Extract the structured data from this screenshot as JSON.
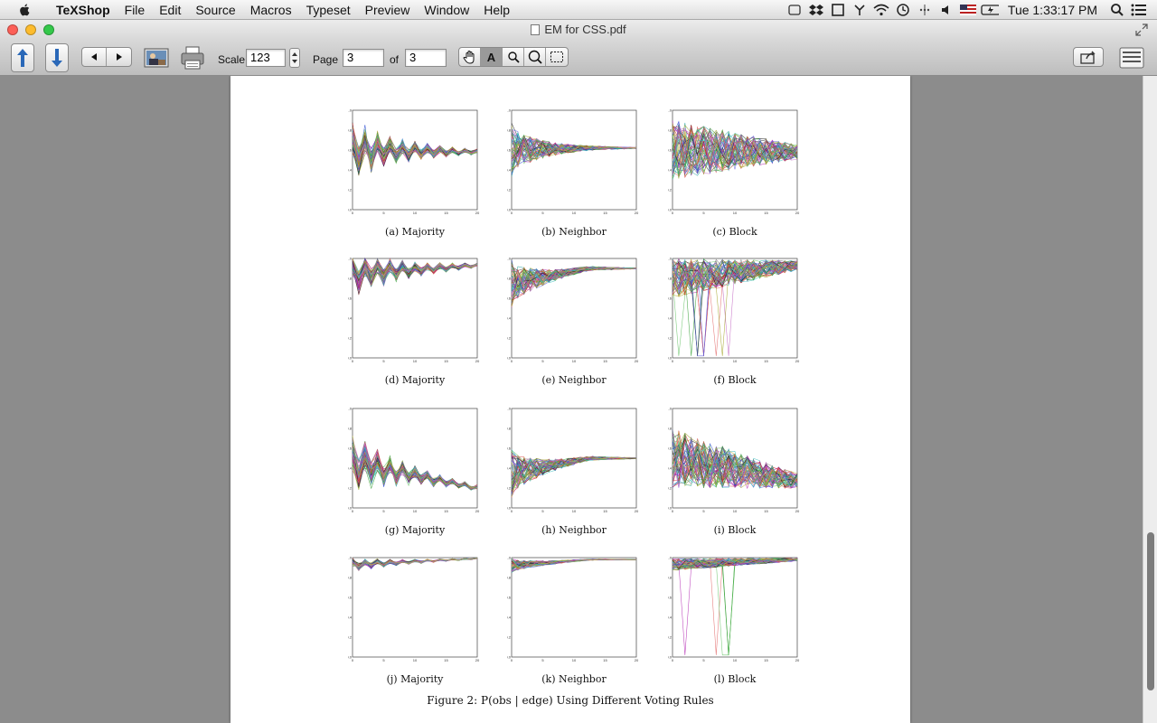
{
  "menubar": {
    "app": "TeXShop",
    "items": [
      "File",
      "Edit",
      "Source",
      "Macros",
      "Typeset",
      "Preview",
      "Window",
      "Help"
    ],
    "clock": "Tue 1:33:17 PM",
    "status_icons": [
      "finder-icon",
      "dropbox-icon",
      "window-icon",
      "antenna-icon",
      "wifi-icon",
      "timemachine-icon",
      "bluetooth-icon",
      "volume-icon",
      "flag-icon",
      "battery-icon",
      "spotlight-icon",
      "list-icon"
    ]
  },
  "window": {
    "title": "EM for CSS.pdf",
    "lights": [
      "#fc5f57",
      "#fdbc2e",
      "#34c84a"
    ]
  },
  "toolbar": {
    "scale_label": "Scale",
    "scale_value": "123",
    "page_label": "Page",
    "page_value": "3",
    "of_label": "of",
    "of_value": "3"
  },
  "document": {
    "figure_caption": "Figure 2: P(obs | edge) Using Different Voting Rules",
    "panels": [
      {
        "caption": "(a) Majority",
        "pattern": "decay",
        "start": 0.6,
        "end": 0.58,
        "spread": 0.25
      },
      {
        "caption": "(b) Neighbor",
        "pattern": "neighbor",
        "start": 0.6,
        "end": 0.62,
        "spread": 0.22
      },
      {
        "caption": "(c) Block",
        "pattern": "block",
        "start": 0.6,
        "end": 0.58,
        "spread": 0.3
      },
      {
        "caption": "(d) Majority",
        "pattern": "decay",
        "start": 0.85,
        "end": 0.93,
        "spread": 0.2
      },
      {
        "caption": "(e) Neighbor",
        "pattern": "neighbor",
        "start": 0.75,
        "end": 0.9,
        "spread": 0.2
      },
      {
        "caption": "(f) Block",
        "pattern": "block_drop",
        "start": 0.8,
        "end": 0.93,
        "spread": 0.2
      },
      {
        "caption": "(g) Majority",
        "pattern": "decay",
        "start": 0.45,
        "end": 0.2,
        "spread": 0.25
      },
      {
        "caption": "(h) Neighbor",
        "pattern": "neighbor",
        "start": 0.35,
        "end": 0.5,
        "spread": 0.2
      },
      {
        "caption": "(i) Block",
        "pattern": "block",
        "start": 0.5,
        "end": 0.27,
        "spread": 0.3
      },
      {
        "caption": "(j) Majority",
        "pattern": "decay",
        "start": 0.93,
        "end": 0.99,
        "spread": 0.06
      },
      {
        "caption": "(k) Neighbor",
        "pattern": "neighbor",
        "start": 0.92,
        "end": 0.98,
        "spread": 0.06
      },
      {
        "caption": "(l) Block",
        "pattern": "block_drop",
        "start": 0.93,
        "end": 0.98,
        "spread": 0.06
      }
    ],
    "yticks": [
      "0.0",
      "0.2",
      "0.4",
      "0.6",
      "0.8",
      "1.0"
    ],
    "xticks": [
      "0",
      "5",
      "10",
      "15",
      "20"
    ]
  }
}
